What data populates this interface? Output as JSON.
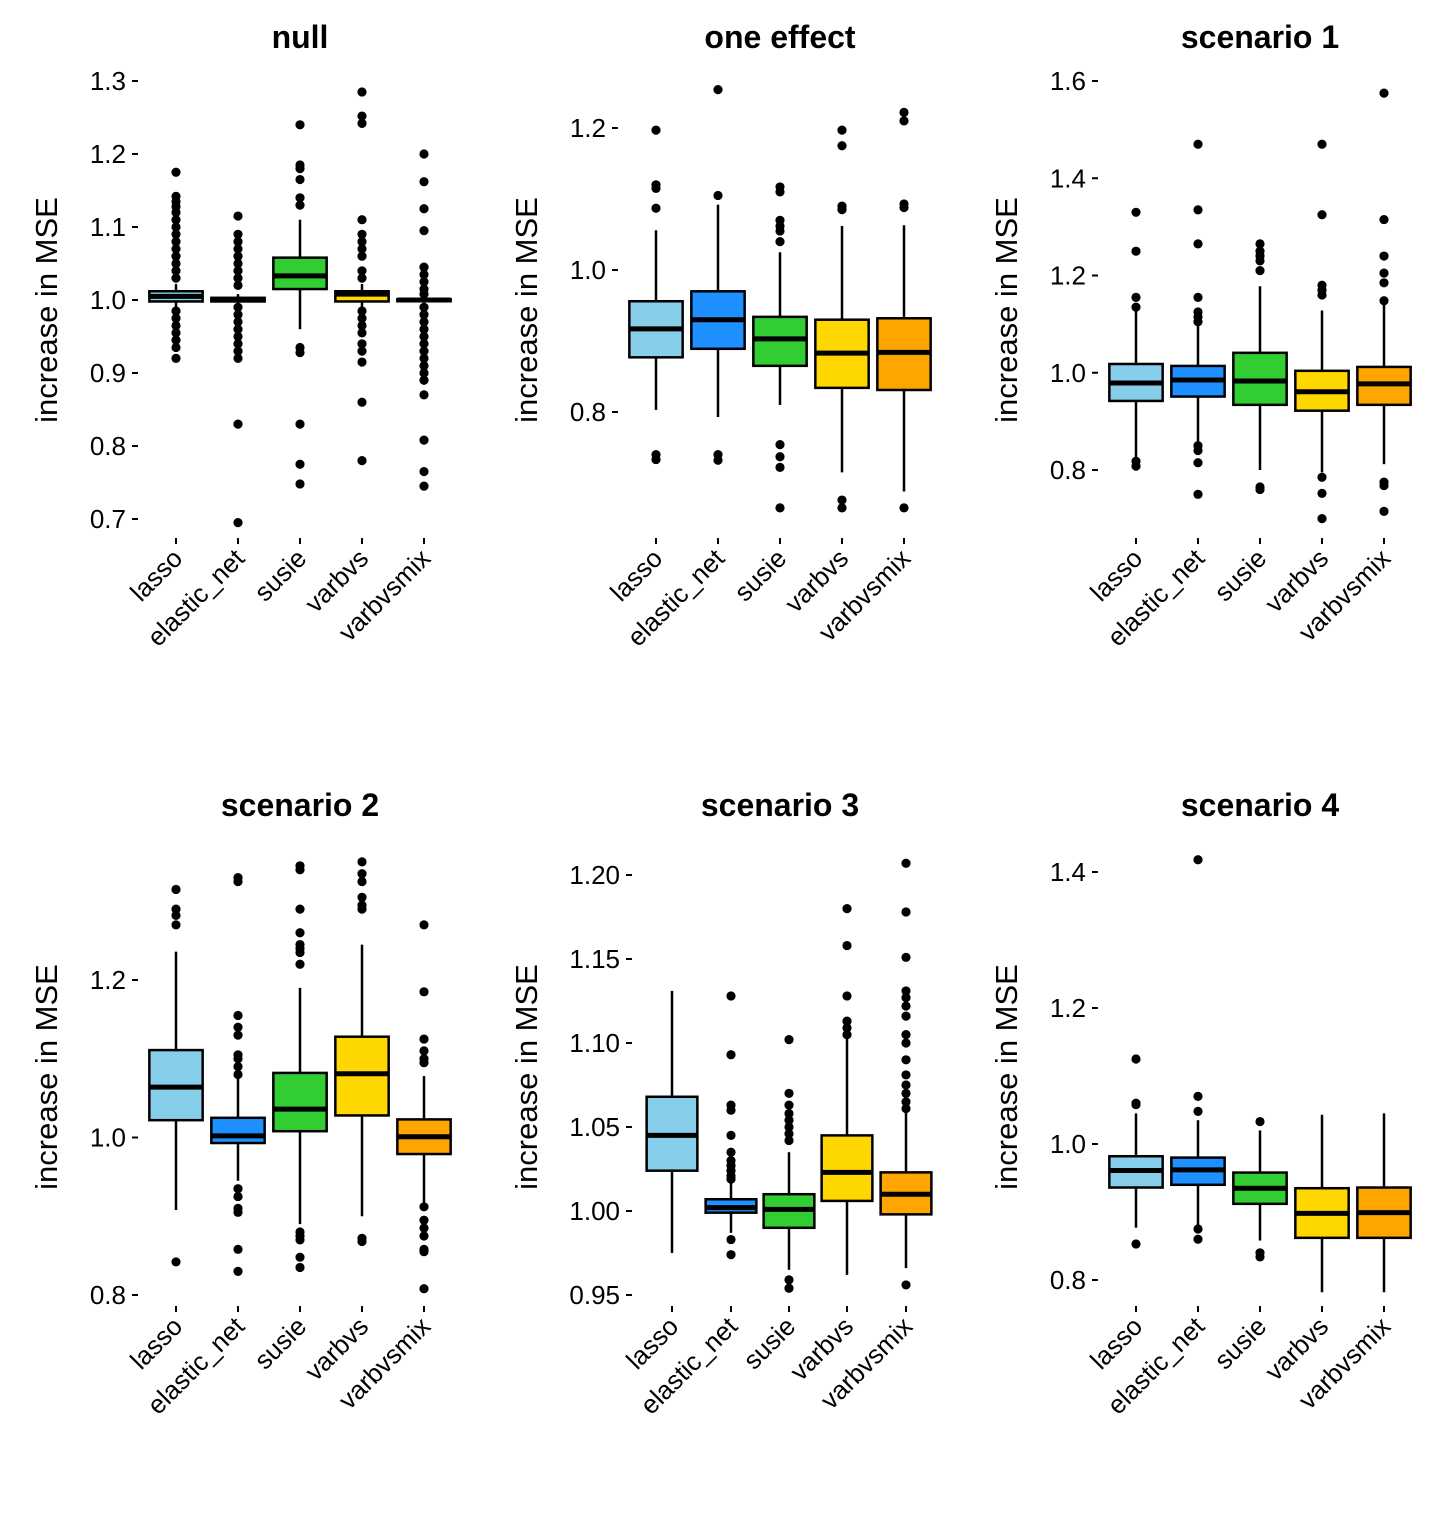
{
  "figure": {
    "ylabel": "increase in MSE",
    "categories": [
      "lasso",
      "elastic_net",
      "susie",
      "varbvs",
      "varbvsmix"
    ],
    "colors": {
      "lasso": "#87CEEB",
      "elastic_net": "#1E90FF",
      "susie": "#32CD32",
      "varbvs": "#FFD700",
      "varbvsmix": "#FFA500"
    }
  },
  "chart_data": [
    {
      "type": "boxplot",
      "title": "null",
      "xlabel": "",
      "ylabel": "increase in MSE",
      "grid": false,
      "legend": "none",
      "ylim": [
        0.67,
        1.32
      ],
      "yticks": [
        0.7,
        0.8,
        0.9,
        1.0,
        1.1,
        1.2,
        1.3
      ],
      "ytick_labels": [
        "0.7",
        "0.8",
        "0.9",
        "1.0",
        "1.1",
        "1.2",
        "1.3"
      ],
      "categories": [
        "lasso",
        "elastic_net",
        "susie",
        "varbvs",
        "varbvsmix"
      ],
      "boxes": [
        {
          "name": "lasso",
          "q1": 0.998,
          "median": 1.005,
          "q3": 1.012,
          "whisker_low": 0.99,
          "whisker_high": 1.022,
          "outliers": [
            1.175,
            1.142,
            1.135,
            1.128,
            1.12,
            1.11,
            1.1,
            1.09,
            1.08,
            1.07,
            1.06,
            1.05,
            1.04,
            1.03,
            0.985,
            0.975,
            0.965,
            0.955,
            0.945,
            0.935,
            0.92
          ]
        },
        {
          "name": "elastic_net",
          "q1": 0.998,
          "median": 1.0,
          "q3": 1.003,
          "whisker_low": 0.994,
          "whisker_high": 1.008,
          "outliers": [
            1.115,
            1.09,
            1.08,
            1.07,
            1.06,
            1.05,
            1.04,
            1.03,
            1.02,
            0.99,
            0.98,
            0.97,
            0.96,
            0.95,
            0.94,
            0.93,
            0.92,
            0.83,
            0.695
          ]
        },
        {
          "name": "susie",
          "q1": 1.015,
          "median": 1.033,
          "q3": 1.058,
          "whisker_low": 0.96,
          "whisker_high": 1.11,
          "outliers": [
            1.24,
            1.185,
            1.18,
            1.165,
            1.14,
            1.13,
            0.935,
            0.928,
            0.83,
            0.775,
            0.748
          ]
        },
        {
          "name": "varbvs",
          "q1": 0.998,
          "median": 1.008,
          "q3": 1.012,
          "whisker_low": 0.99,
          "whisker_high": 1.022,
          "outliers": [
            1.285,
            1.252,
            1.242,
            1.11,
            1.09,
            1.08,
            1.07,
            1.06,
            1.04,
            1.03,
            0.985,
            0.975,
            0.965,
            0.955,
            0.94,
            0.93,
            0.915,
            0.86,
            0.78
          ]
        },
        {
          "name": "varbvsmix",
          "q1": 0.999,
          "median": 1.0,
          "q3": 1.001,
          "whisker_low": 0.996,
          "whisker_high": 1.004,
          "outliers": [
            1.2,
            1.162,
            1.125,
            1.095,
            1.045,
            1.035,
            1.025,
            1.015,
            1.008,
            0.99,
            0.98,
            0.97,
            0.96,
            0.95,
            0.94,
            0.93,
            0.92,
            0.91,
            0.9,
            0.89,
            0.87,
            0.808,
            0.765,
            0.745
          ]
        }
      ]
    },
    {
      "type": "boxplot",
      "title": "one effect",
      "xlabel": "",
      "ylabel": "increase in MSE",
      "grid": false,
      "legend": "none",
      "ylim": [
        0.64,
        1.27
      ],
      "yticks": [
        0.8,
        1.0,
        1.2
      ],
      "ytick_labels": [
        "0.8",
        "1.0",
        "1.2"
      ],
      "categories": [
        "lasso",
        "elastic_net",
        "susie",
        "varbvs",
        "varbvsmix"
      ],
      "boxes": [
        {
          "name": "lasso",
          "q1": 0.877,
          "median": 0.917,
          "q3": 0.956,
          "whisker_low": 0.803,
          "whisker_high": 1.056,
          "outliers": [
            1.197,
            1.12,
            1.115,
            1.087,
            0.74,
            0.733
          ]
        },
        {
          "name": "elastic_net",
          "q1": 0.889,
          "median": 0.93,
          "q3": 0.97,
          "whisker_low": 0.793,
          "whisker_high": 1.092,
          "outliers": [
            1.254,
            1.105,
            0.74,
            0.732
          ]
        },
        {
          "name": "susie",
          "q1": 0.865,
          "median": 0.903,
          "q3": 0.934,
          "whisker_low": 0.81,
          "whisker_high": 1.025,
          "outliers": [
            1.117,
            1.11,
            1.07,
            1.062,
            1.055,
            1.04,
            0.754,
            0.737,
            0.722,
            0.665
          ]
        },
        {
          "name": "varbvs",
          "q1": 0.834,
          "median": 0.883,
          "q3": 0.93,
          "whisker_low": 0.715,
          "whisker_high": 1.062,
          "outliers": [
            1.197,
            1.175,
            1.09,
            1.085,
            0.676,
            0.665
          ]
        },
        {
          "name": "varbvsmix",
          "q1": 0.831,
          "median": 0.884,
          "q3": 0.932,
          "whisker_low": 0.688,
          "whisker_high": 1.063,
          "outliers": [
            1.222,
            1.21,
            1.093,
            1.088,
            0.665
          ]
        }
      ]
    },
    {
      "type": "boxplot",
      "title": "scenario 1",
      "xlabel": "",
      "ylabel": "increase in MSE",
      "grid": false,
      "legend": "none",
      "ylim": [
        0.67,
        1.64
      ],
      "yticks": [
        0.8,
        1.0,
        1.2,
        1.4,
        1.6
      ],
      "ytick_labels": [
        "0.8",
        "1.0",
        "1.2",
        "1.4",
        "1.6"
      ],
      "categories": [
        "lasso",
        "elastic_net",
        "susie",
        "varbvs",
        "varbvsmix"
      ],
      "boxes": [
        {
          "name": "lasso",
          "q1": 0.942,
          "median": 0.979,
          "q3": 1.018,
          "whisker_low": 0.82,
          "whisker_high": 1.13,
          "outliers": [
            1.33,
            1.25,
            1.155,
            1.135,
            0.818,
            0.808
          ]
        },
        {
          "name": "elastic_net",
          "q1": 0.951,
          "median": 0.985,
          "q3": 1.014,
          "whisker_low": 0.855,
          "whisker_high": 1.1,
          "outliers": [
            1.47,
            1.335,
            1.265,
            1.155,
            1.125,
            1.115,
            1.105,
            0.85,
            0.84,
            0.815,
            0.75
          ]
        },
        {
          "name": "susie",
          "q1": 0.934,
          "median": 0.983,
          "q3": 1.041,
          "whisker_low": 0.8,
          "whisker_high": 1.178,
          "outliers": [
            1.265,
            1.25,
            1.24,
            1.23,
            1.21,
            0.765,
            0.76
          ]
        },
        {
          "name": "varbvs",
          "q1": 0.922,
          "median": 0.961,
          "q3": 1.004,
          "whisker_low": 0.795,
          "whisker_high": 1.128,
          "outliers": [
            1.47,
            1.325,
            1.18,
            1.17,
            1.16,
            0.785,
            0.752,
            0.7
          ]
        },
        {
          "name": "varbvsmix",
          "q1": 0.934,
          "median": 0.977,
          "q3": 1.012,
          "whisker_low": 0.812,
          "whisker_high": 1.145,
          "outliers": [
            1.575,
            1.315,
            1.24,
            1.205,
            1.185,
            1.148,
            0.775,
            0.768,
            0.715
          ]
        }
      ]
    },
    {
      "type": "boxplot",
      "title": "scenario 2",
      "xlabel": "",
      "ylabel": "increase in MSE",
      "grid": false,
      "legend": "none",
      "ylim": [
        0.79,
        1.37
      ],
      "yticks": [
        0.8,
        1.0,
        1.2
      ],
      "ytick_labels": [
        "0.8",
        "1.0",
        "1.2"
      ],
      "categories": [
        "lasso",
        "elastic_net",
        "susie",
        "varbvs",
        "varbvsmix"
      ],
      "boxes": [
        {
          "name": "lasso",
          "q1": 1.022,
          "median": 1.064,
          "q3": 1.111,
          "whisker_low": 0.908,
          "whisker_high": 1.236,
          "outliers": [
            1.315,
            1.29,
            1.282,
            1.27,
            0.842
          ]
        },
        {
          "name": "elastic_net",
          "q1": 0.993,
          "median": 1.002,
          "q3": 1.025,
          "whisker_low": 0.945,
          "whisker_high": 1.08,
          "outliers": [
            1.33,
            1.325,
            1.155,
            1.14,
            1.13,
            1.105,
            1.1,
            1.09,
            1.08,
            0.935,
            0.925,
            0.91,
            0.905,
            0.858,
            0.83
          ]
        },
        {
          "name": "susie",
          "q1": 1.008,
          "median": 1.036,
          "q3": 1.082,
          "whisker_low": 0.89,
          "whisker_high": 1.19,
          "outliers": [
            1.345,
            1.34,
            1.29,
            1.26,
            1.245,
            1.24,
            1.235,
            1.22,
            0.88,
            0.875,
            0.87,
            0.848,
            0.835
          ]
        },
        {
          "name": "varbvs",
          "q1": 1.028,
          "median": 1.081,
          "q3": 1.128,
          "whisker_low": 0.9,
          "whisker_high": 1.245,
          "outliers": [
            1.35,
            1.335,
            1.325,
            1.305,
            1.295,
            1.29,
            0.872,
            0.868
          ]
        },
        {
          "name": "varbvsmix",
          "q1": 0.979,
          "median": 1.001,
          "q3": 1.023,
          "whisker_low": 0.915,
          "whisker_high": 1.078,
          "outliers": [
            1.27,
            1.185,
            1.125,
            1.11,
            1.1,
            1.095,
            0.912,
            0.895,
            0.885,
            0.875,
            0.858,
            0.855,
            0.808
          ]
        }
      ]
    },
    {
      "type": "boxplot",
      "title": "scenario 3",
      "xlabel": "",
      "ylabel": "increase in MSE",
      "grid": false,
      "legend": "none",
      "ylim": [
        0.945,
        1.215
      ],
      "yticks": [
        0.95,
        1.0,
        1.05,
        1.1,
        1.15,
        1.2
      ],
      "ytick_labels": [
        "0.95",
        "1.00",
        "1.05",
        "1.10",
        "1.15",
        "1.20"
      ],
      "categories": [
        "lasso",
        "elastic_net",
        "susie",
        "varbvs",
        "varbvsmix"
      ],
      "boxes": [
        {
          "name": "lasso",
          "q1": 1.024,
          "median": 1.045,
          "q3": 1.068,
          "whisker_low": 0.975,
          "whisker_high": 1.131,
          "outliers": []
        },
        {
          "name": "elastic_net",
          "q1": 0.999,
          "median": 1.002,
          "q3": 1.007,
          "whisker_low": 0.987,
          "whisker_high": 1.017,
          "outliers": [
            1.128,
            1.093,
            1.063,
            1.06,
            1.045,
            1.035,
            1.03,
            1.027,
            1.024,
            1.021,
            1.019,
            0.983,
            0.974
          ]
        },
        {
          "name": "susie",
          "q1": 0.99,
          "median": 1.001,
          "q3": 1.01,
          "whisker_low": 0.965,
          "whisker_high": 1.035,
          "outliers": [
            1.102,
            1.07,
            1.063,
            1.058,
            1.054,
            1.05,
            1.046,
            1.042,
            0.959,
            0.954
          ]
        },
        {
          "name": "varbvs",
          "q1": 1.006,
          "median": 1.023,
          "q3": 1.045,
          "whisker_low": 0.962,
          "whisker_high": 1.104,
          "outliers": [
            1.18,
            1.158,
            1.128,
            1.113,
            1.109,
            1.105
          ]
        },
        {
          "name": "varbvsmix",
          "q1": 0.998,
          "median": 1.01,
          "q3": 1.023,
          "whisker_low": 0.966,
          "whisker_high": 1.06,
          "outliers": [
            1.207,
            1.178,
            1.151,
            1.131,
            1.127,
            1.122,
            1.116,
            1.105,
            1.1,
            1.09,
            1.081,
            1.075,
            1.07,
            1.065,
            1.061,
            0.956
          ]
        }
      ]
    },
    {
      "type": "boxplot",
      "title": "scenario 4",
      "xlabel": "",
      "ylabel": "increase in MSE",
      "grid": false,
      "legend": "none",
      "ylim": [
        0.77,
        1.44
      ],
      "yticks": [
        0.8,
        1.0,
        1.2,
        1.4
      ],
      "ytick_labels": [
        "0.8",
        "1.0",
        "1.2",
        "1.4"
      ],
      "categories": [
        "lasso",
        "elastic_net",
        "susie",
        "varbvs",
        "varbvsmix"
      ],
      "boxes": [
        {
          "name": "lasso",
          "q1": 0.936,
          "median": 0.961,
          "q3": 0.982,
          "whisker_low": 0.877,
          "whisker_high": 1.045,
          "outliers": [
            1.125,
            1.06,
            1.058,
            0.853
          ]
        },
        {
          "name": "elastic_net",
          "q1": 0.94,
          "median": 0.962,
          "q3": 0.98,
          "whisker_low": 0.88,
          "whisker_high": 1.035,
          "outliers": [
            1.418,
            1.07,
            1.048,
            0.875,
            0.86
          ]
        },
        {
          "name": "susie",
          "q1": 0.912,
          "median": 0.935,
          "q3": 0.958,
          "whisker_low": 0.858,
          "whisker_high": 1.02,
          "outliers": [
            1.033,
            0.84,
            0.834
          ]
        },
        {
          "name": "varbvs",
          "q1": 0.862,
          "median": 0.898,
          "q3": 0.935,
          "whisker_low": 0.782,
          "whisker_high": 1.043,
          "outliers": []
        },
        {
          "name": "varbvsmix",
          "q1": 0.862,
          "median": 0.899,
          "q3": 0.936,
          "whisker_low": 0.782,
          "whisker_high": 1.045,
          "outliers": []
        }
      ]
    }
  ]
}
